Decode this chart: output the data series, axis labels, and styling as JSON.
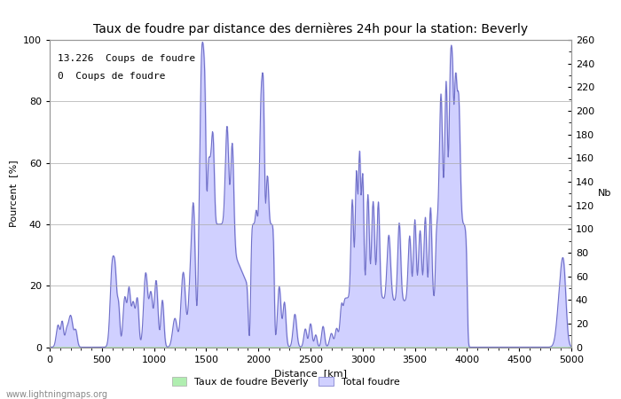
{
  "title": "Taux de foudre par distance des dernières 24h pour la station: Beverly",
  "xlabel": "Distance  [km]",
  "ylabel_left": "Pourcent  [%]",
  "ylabel_right": "Nb",
  "annotation1": "13.226  Coups de foudre",
  "annotation2": "0  Coups de foudre",
  "xlim": [
    0,
    5000
  ],
  "ylim_left": [
    0,
    100
  ],
  "ylim_right": [
    0,
    260
  ],
  "xticks": [
    0,
    500,
    1000,
    1500,
    2000,
    2500,
    3000,
    3500,
    4000,
    4500,
    5000
  ],
  "yticks_left": [
    0,
    20,
    40,
    60,
    80,
    100
  ],
  "yticks_right": [
    0,
    20,
    40,
    60,
    80,
    100,
    120,
    140,
    160,
    180,
    200,
    220,
    240,
    260
  ],
  "legend1": "Taux de foudre Beverly",
  "legend2": "Total foudre",
  "fill_color": "#d0d0ff",
  "line_color": "#7070c8",
  "green_fill": "#b0eeb0",
  "watermark": "www.lightningmaps.org",
  "background_color": "#ffffff",
  "grid_color": "#aaaaaa",
  "title_fontsize": 10,
  "label_fontsize": 8,
  "tick_fontsize": 8
}
